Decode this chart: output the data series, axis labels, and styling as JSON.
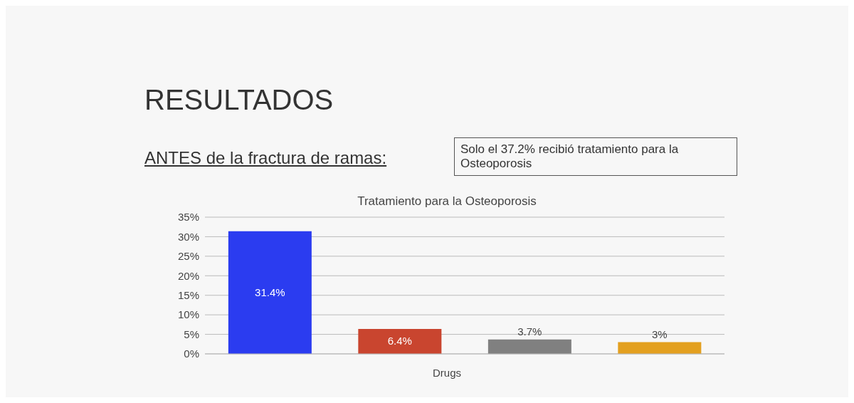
{
  "chart_data": {
    "type": "bar",
    "title": "Tratamiento para la Osteoporosis",
    "xlabel": "Drugs",
    "annotations": [
      "RESULTADOS",
      "ANTES de la fractura de ramas:",
      "Solo el 37.2% recibió tratamiento para la Osteoporosis"
    ],
    "categories": [
      null,
      null,
      null,
      null
    ],
    "values": [
      31.4,
      6.4,
      3.7,
      3
    ],
    "colors": [
      "#2b3cf0",
      "#c9452f",
      "#808080",
      "#e3a020"
    ],
    "value_labels": [
      "31.4%",
      "6.4%",
      "3.7%",
      "3%"
    ],
    "ylim": [
      0,
      35
    ],
    "yticks": [
      {
        "value": 0,
        "label": "0%"
      },
      {
        "value": 5,
        "label": "5%"
      },
      {
        "value": 10,
        "label": "10%"
      },
      {
        "value": 15,
        "label": "15%"
      },
      {
        "value": 20,
        "label": "20%"
      },
      {
        "value": 25,
        "label": "25%"
      },
      {
        "value": 30,
        "label": "30%"
      },
      {
        "value": 35,
        "label": "35%"
      }
    ],
    "grid": "y"
  }
}
